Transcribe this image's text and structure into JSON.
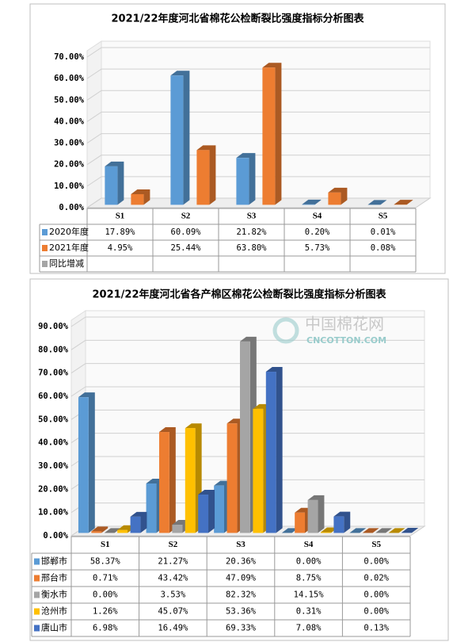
{
  "chart_data": [
    {
      "type": "bar",
      "title": "2021/22年度河北省棉花公检断裂比强度指标分析图表",
      "categories": [
        "S1",
        "S2",
        "S3",
        "S4",
        "S5"
      ],
      "series": [
        {
          "name": "2020年度",
          "color": "#5b9bd5",
          "values": [
            17.89,
            60.09,
            21.82,
            0.2,
            0.01
          ],
          "value_labels": [
            "17.89%",
            "60.09%",
            "21.82%",
            "0.20%",
            "0.01%"
          ]
        },
        {
          "name": "2021年度",
          "color": "#ed7d31",
          "values": [
            4.95,
            25.44,
            63.8,
            5.73,
            0.08
          ],
          "value_labels": [
            "4.95%",
            "25.44%",
            "63.80%",
            "5.73%",
            "0.08%"
          ]
        },
        {
          "name": "同比增减",
          "color": "#a5a5a5",
          "values": [
            null,
            null,
            null,
            null,
            null
          ]
        }
      ],
      "ylim": [
        0,
        70
      ],
      "yticks": [
        {
          "value": 0,
          "label": "0.00%"
        },
        {
          "value": 10,
          "label": "10.00%"
        },
        {
          "value": 20,
          "label": "20.00%"
        },
        {
          "value": 30,
          "label": "30.00%"
        },
        {
          "value": 40,
          "label": "40.00%"
        },
        {
          "value": 50,
          "label": "50.00%"
        },
        {
          "value": 60,
          "label": "60.00%"
        },
        {
          "value": 70,
          "label": "70.00%"
        }
      ],
      "grid": true,
      "data_table": true
    },
    {
      "type": "bar",
      "title": "2021/22年度河北省各产棉区棉花公检断裂比强度指标分析图表",
      "watermark": {
        "name": "中国棉花网",
        "site": "CNCOTTON.COM"
      },
      "categories": [
        "S1",
        "S2",
        "S3",
        "S4",
        "S5"
      ],
      "series": [
        {
          "name": "邯郸市",
          "color": "#5b9bd5",
          "values": [
            58.37,
            21.27,
            20.36,
            0.0,
            0.0
          ],
          "value_labels": [
            "58.37%",
            "21.27%",
            "20.36%",
            "0.00%",
            "0.00%"
          ]
        },
        {
          "name": "邢台市",
          "color": "#ed7d31",
          "values": [
            0.71,
            43.42,
            47.09,
            8.75,
            0.02
          ],
          "value_labels": [
            "0.71%",
            "43.42%",
            "47.09%",
            "8.75%",
            "0.02%"
          ]
        },
        {
          "name": "衡水市",
          "color": "#a5a5a5",
          "values": [
            0.0,
            3.53,
            82.32,
            14.15,
            0.0
          ],
          "value_labels": [
            "0.00%",
            "3.53%",
            "82.32%",
            "14.15%",
            "0.00%"
          ]
        },
        {
          "name": "沧州市",
          "color": "#ffc000",
          "values": [
            1.26,
            45.07,
            53.36,
            0.31,
            0.0
          ],
          "value_labels": [
            "1.26%",
            "45.07%",
            "53.36%",
            "0.31%",
            "0.00%"
          ]
        },
        {
          "name": "唐山市",
          "color": "#4472c4",
          "values": [
            6.98,
            16.49,
            69.33,
            7.08,
            0.13
          ],
          "value_labels": [
            "6.98%",
            "16.49%",
            "69.33%",
            "7.08%",
            "0.13%"
          ]
        }
      ],
      "ylim": [
        0,
        90
      ],
      "yticks": [
        {
          "value": 0,
          "label": "0.00%"
        },
        {
          "value": 10,
          "label": "10.00%"
        },
        {
          "value": 20,
          "label": "20.00%"
        },
        {
          "value": 30,
          "label": "30.00%"
        },
        {
          "value": 40,
          "label": "40.00%"
        },
        {
          "value": 50,
          "label": "50.00%"
        },
        {
          "value": 60,
          "label": "60.00%"
        },
        {
          "value": 70,
          "label": "70.00%"
        },
        {
          "value": 80,
          "label": "80.00%"
        },
        {
          "value": 90,
          "label": "90.00%"
        }
      ],
      "grid": true,
      "data_table": true
    }
  ]
}
